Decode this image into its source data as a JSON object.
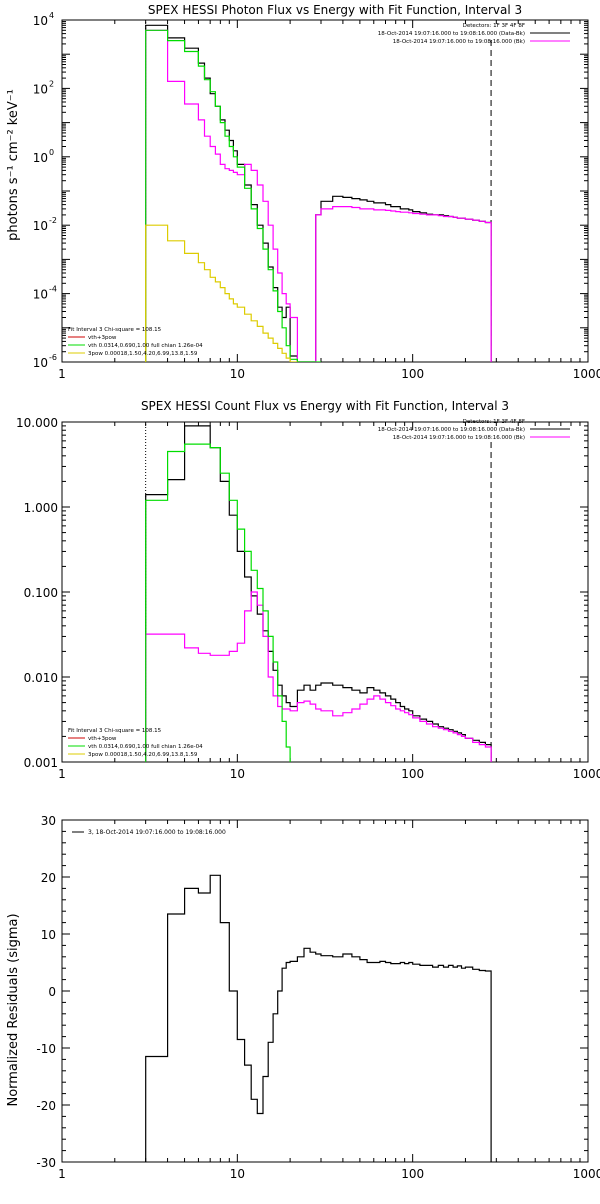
{
  "colors": {
    "data": "#000000",
    "total_fit": "#ff00ff",
    "vth": "#00dd00",
    "3pow": "#ddcc00",
    "vth_3pow_legend": "#cc0000"
  },
  "chart_data": [
    {
      "type": "line",
      "title": "SPEX HESSI Photon Flux vs Energy with Fit Function, Interval 3",
      "xlabel": "",
      "ylabel": "photons s⁻¹ cm⁻² keV⁻¹",
      "xscale": "log",
      "yscale": "log",
      "xlim": [
        1,
        1000
      ],
      "ylim": [
        1e-06,
        10000
      ],
      "x_ticks": [
        "1",
        "10",
        "100",
        "1000"
      ],
      "y_ticks": [
        {
          "base": "10",
          "exp": "-6"
        },
        {
          "base": "10",
          "exp": "-4"
        },
        {
          "base": "10",
          "exp": "-2"
        },
        {
          "base": "10",
          "exp": "0"
        },
        {
          "base": "10",
          "exp": "2"
        },
        {
          "base": "10",
          "exp": "4"
        }
      ],
      "vlines": [
        3,
        280
      ],
      "legend_top": {
        "heading": "Detectors: 1F 3F 4F 8F",
        "entries": [
          {
            "label": "18-Oct-2014 19:07:16.000 to 19:08:16.000 (Data-Bk)"
          },
          {
            "label": "18-Oct-2014 19:07:16.000 to 19:08:16.000 (Bk)"
          }
        ]
      },
      "legend_bottom": [
        "Fit Interval 3   Chi-square = 108.15",
        "vth+3pow",
        "vth 0.0314,0.690,1.00  full chian 1.26e-04",
        "3pow 0.00018,1.50,4.20,6.99,13.8,1.59"
      ],
      "series": [
        {
          "name": "Data-Bk",
          "color_key": "data",
          "edges": [
            3,
            3.5,
            4,
            4.5,
            5,
            5.5,
            6,
            6.5,
            7,
            7.5,
            8,
            8.5,
            9,
            9.5,
            10,
            11,
            12,
            13,
            14,
            15,
            16,
            17,
            18,
            19,
            20,
            22,
            24,
            26,
            28,
            30,
            35,
            40,
            45,
            50,
            55,
            60,
            65,
            70,
            75,
            80,
            85,
            90,
            95,
            100,
            110,
            120,
            130,
            140,
            150,
            160,
            170,
            180,
            190,
            200,
            220,
            240,
            260,
            280
          ],
          "values": [
            7000,
            7000,
            3000,
            3000,
            1500,
            1500,
            550,
            200,
            70,
            30,
            12,
            6,
            3,
            1.5,
            0.6,
            0.15,
            0.04,
            0.01,
            0.003,
            0.0006,
            0.00015,
            4e-05,
            2e-05,
            4e-05,
            1.5e-06,
            1e-06,
            1e-06,
            1e-06,
            0.02,
            0.05,
            0.07,
            0.065,
            0.06,
            0.055,
            0.05,
            0.045,
            0.045,
            0.04,
            0.035,
            0.035,
            0.03,
            0.03,
            0.028,
            0.025,
            0.023,
            0.021,
            0.02,
            0.02,
            0.019,
            0.018,
            0.017,
            0.016,
            0.016,
            0.015,
            0.014,
            0.013,
            0.012
          ]
        },
        {
          "name": "vth+3pow",
          "color_key": "total_fit",
          "edges": [
            3,
            3.5,
            4,
            4.5,
            5,
            5.5,
            6,
            6.5,
            7,
            7.5,
            8,
            8.5,
            9,
            9.5,
            10,
            11,
            12,
            13,
            14,
            15,
            16,
            17,
            18,
            19,
            20,
            22,
            24,
            26,
            28,
            30,
            35,
            40,
            45,
            50,
            55,
            60,
            65,
            70,
            75,
            80,
            85,
            90,
            95,
            100,
            110,
            120,
            130,
            140,
            150,
            160,
            170,
            180,
            190,
            200,
            220,
            240,
            260,
            280
          ],
          "values": [
            5000,
            5000,
            160,
            160,
            35,
            35,
            12,
            4,
            2,
            1.2,
            0.6,
            0.45,
            0.4,
            0.35,
            0.3,
            0.6,
            0.4,
            0.15,
            0.05,
            0.01,
            0.002,
            0.0004,
            0.0001,
            5e-05,
            2e-05,
            1e-06,
            1e-06,
            1e-06,
            0.02,
            0.03,
            0.035,
            0.035,
            0.033,
            0.03,
            0.03,
            0.028,
            0.028,
            0.027,
            0.026,
            0.025,
            0.024,
            0.024,
            0.023,
            0.022,
            0.021,
            0.02,
            0.02,
            0.019,
            0.018,
            0.018,
            0.017,
            0.016,
            0.016,
            0.015,
            0.014,
            0.013,
            0.012
          ]
        },
        {
          "name": "vth",
          "color_key": "vth",
          "edges": [
            3,
            3.5,
            4,
            4.5,
            5,
            5.5,
            6,
            6.5,
            7,
            7.5,
            8,
            8.5,
            9,
            9.5,
            10,
            11,
            12,
            13,
            14,
            15,
            16,
            17,
            18,
            19,
            20,
            22,
            24,
            26,
            28,
            30
          ],
          "values": [
            5000,
            5000,
            2500,
            2500,
            1200,
            1200,
            450,
            180,
            80,
            30,
            10,
            4,
            2,
            1,
            0.5,
            0.12,
            0.03,
            0.008,
            0.002,
            0.0005,
            0.00012,
            3e-05,
            1e-05,
            3e-06,
            1.2e-06,
            1e-06,
            1e-06,
            1e-06,
            1e-06
          ]
        },
        {
          "name": "3pow",
          "color_key": "3pow",
          "edges": [
            3,
            3.5,
            4,
            4.5,
            5,
            5.5,
            6,
            6.5,
            7,
            7.5,
            8,
            8.5,
            9,
            9.5,
            10,
            11,
            12,
            13,
            14,
            15,
            16,
            17,
            18,
            19,
            20,
            22
          ],
          "values": [
            0.01,
            0.01,
            0.0035,
            0.0035,
            0.0015,
            0.0015,
            0.0008,
            0.0005,
            0.0003,
            0.00022,
            0.00015,
            0.0001,
            7e-05,
            5e-05,
            4e-05,
            2.5e-05,
            1.6e-05,
            1.1e-05,
            7e-06,
            5e-06,
            3.5e-06,
            2.5e-06,
            1.8e-06,
            1.3e-06,
            1e-06
          ]
        }
      ]
    },
    {
      "type": "line",
      "title": "SPEX HESSI Count Flux vs Energy with Fit Function, Interval 3",
      "xlabel": "",
      "ylabel": "",
      "xscale": "log",
      "yscale": "log",
      "xlim": [
        1,
        1000
      ],
      "ylim": [
        0.001,
        10
      ],
      "x_ticks": [
        "1",
        "10",
        "100",
        "1000"
      ],
      "y_ticks": [
        "0.001",
        "0.010",
        "0.100",
        "1.000",
        "10.000"
      ],
      "vlines": [
        3,
        280
      ],
      "legend_top": {
        "heading": "Detectors: 1F 3F 4F 8F",
        "entries": [
          {
            "label": "18-Oct-2014 19:07:16.000 to 19:08:16.000 (Data-Bk)"
          },
          {
            "label": "18-Oct-2014 19:07:16.000 to 19:08:16.000 (Bk)"
          }
        ]
      },
      "legend_bottom": [
        "Fit Interval 3   Chi-square = 108.15",
        "vth+3pow",
        "vth 0.0314,0.690,1.00  full chian 1.26e-04",
        "3pow 0.00018,1.50,4.20,6.99,13.8,1.59"
      ],
      "series": [
        {
          "name": "Data-Bk",
          "color_key": "data",
          "edges": [
            3,
            4,
            5,
            6,
            7,
            8,
            9,
            10,
            11,
            12,
            13,
            14,
            15,
            16,
            17,
            18,
            19,
            20,
            22,
            24,
            26,
            28,
            30,
            35,
            40,
            45,
            50,
            55,
            60,
            65,
            70,
            75,
            80,
            85,
            90,
            95,
            100,
            110,
            120,
            130,
            140,
            150,
            160,
            170,
            180,
            190,
            200,
            220,
            240,
            260,
            280
          ],
          "values": [
            1.4,
            2.1,
            9,
            9,
            5,
            2,
            0.8,
            0.3,
            0.15,
            0.09,
            0.055,
            0.035,
            0.02,
            0.012,
            0.008,
            0.006,
            0.005,
            0.0045,
            0.007,
            0.008,
            0.007,
            0.008,
            0.0085,
            0.008,
            0.0075,
            0.007,
            0.0065,
            0.0075,
            0.007,
            0.0065,
            0.006,
            0.0055,
            0.005,
            0.0045,
            0.0042,
            0.004,
            0.0035,
            0.0032,
            0.003,
            0.0028,
            0.0026,
            0.0025,
            0.0024,
            0.0023,
            0.0022,
            0.0021,
            0.0019,
            0.0018,
            0.0017,
            0.0016
          ]
        },
        {
          "name": "vth+3pow",
          "color_key": "total_fit",
          "edges": [
            3,
            4,
            5,
            6,
            7,
            8,
            9,
            10,
            11,
            12,
            13,
            14,
            15,
            16,
            17,
            18,
            19,
            20,
            22,
            24,
            26,
            28,
            30,
            35,
            40,
            45,
            50,
            55,
            60,
            65,
            70,
            75,
            80,
            85,
            90,
            95,
            100,
            110,
            120,
            130,
            140,
            150,
            160,
            170,
            180,
            190,
            200,
            220,
            240,
            260,
            280
          ],
          "values": [
            0.032,
            0.032,
            0.022,
            0.019,
            0.018,
            0.018,
            0.02,
            0.025,
            0.06,
            0.1,
            0.07,
            0.03,
            0.01,
            0.006,
            0.0045,
            0.0042,
            0.0042,
            0.004,
            0.005,
            0.0052,
            0.0048,
            0.0042,
            0.004,
            0.0035,
            0.0038,
            0.0042,
            0.0048,
            0.0055,
            0.006,
            0.0055,
            0.005,
            0.0046,
            0.0042,
            0.004,
            0.0038,
            0.0036,
            0.0033,
            0.003,
            0.0028,
            0.0026,
            0.0025,
            0.0024,
            0.0023,
            0.0022,
            0.0021,
            0.002,
            0.0019,
            0.0017,
            0.0016,
            0.0015
          ]
        },
        {
          "name": "vth",
          "color_key": "vth",
          "edges": [
            3,
            4,
            5,
            6,
            7,
            8,
            9,
            10,
            11,
            12,
            13,
            14,
            15,
            16,
            17,
            18,
            19,
            20
          ],
          "values": [
            1.2,
            4.5,
            5.5,
            5.5,
            5,
            2.5,
            1.2,
            0.55,
            0.3,
            0.18,
            0.11,
            0.06,
            0.03,
            0.015,
            0.006,
            0.003,
            0.0015
          ]
        }
      ]
    },
    {
      "type": "line",
      "title": "",
      "xlabel": "",
      "ylabel": "Normalized Residuals (sigma)",
      "xscale": "log",
      "yscale": "linear",
      "xlim": [
        1,
        1000
      ],
      "ylim": [
        -30,
        30
      ],
      "x_ticks": [
        "1",
        "10",
        "100",
        "1000"
      ],
      "y_ticks": [
        "-30",
        "-20",
        "-10",
        "0",
        "10",
        "20",
        "30"
      ],
      "legend_top": {
        "entries": [
          {
            "label": "3, 18-Oct-2014 19:07:16.000 to 19:08:16.000"
          }
        ]
      },
      "series": [
        {
          "name": "3, 18-Oct-2014 19:07:16.000 to 19:08:16.000",
          "color_key": "data",
          "edges": [
            3,
            4,
            5,
            6,
            7,
            8,
            9,
            10,
            11,
            12,
            13,
            14,
            15,
            16,
            17,
            18,
            19,
            20,
            22,
            24,
            26,
            28,
            30,
            35,
            40,
            45,
            50,
            55,
            60,
            65,
            70,
            75,
            80,
            85,
            90,
            95,
            100,
            110,
            120,
            130,
            140,
            150,
            160,
            170,
            180,
            190,
            200,
            220,
            240,
            260,
            280
          ],
          "values": [
            -11.5,
            13.5,
            18,
            17.2,
            20.3,
            12,
            0,
            -8.5,
            -13,
            -19,
            -21.5,
            -15,
            -9,
            -4,
            0,
            4,
            5,
            5.2,
            6,
            7.5,
            6.8,
            6.5,
            6.2,
            6,
            6.5,
            6,
            5.5,
            5,
            5,
            5.2,
            5,
            4.8,
            4.8,
            5,
            4.8,
            5,
            4.7,
            4.5,
            4.5,
            4.2,
            4.5,
            4.2,
            4.5,
            4.2,
            4.4,
            4,
            4.2,
            3.8,
            3.6,
            3.5
          ]
        }
      ]
    }
  ]
}
